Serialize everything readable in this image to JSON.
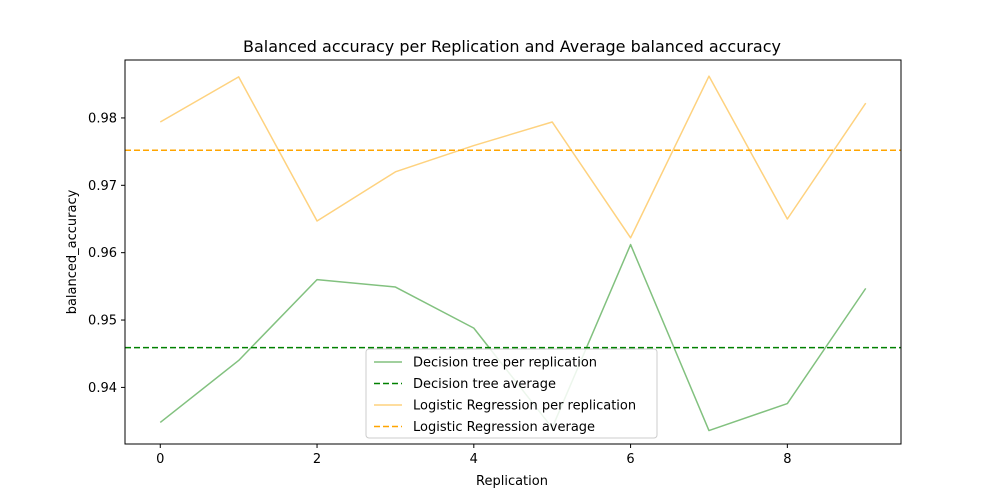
{
  "chart_data": {
    "type": "line",
    "title": "Balanced accuracy per Replication and Average balanced accuracy",
    "xlabel": "Replication",
    "ylabel": "balanced_accuracy",
    "xlim": [
      -0.45,
      9.45
    ],
    "ylim": [
      0.9316,
      0.9886
    ],
    "xticks": [
      0,
      2,
      4,
      6,
      8
    ],
    "yticks": [
      0.94,
      0.95,
      0.96,
      0.97,
      0.98
    ],
    "xtick_labels": [
      "0",
      "2",
      "4",
      "6",
      "8"
    ],
    "ytick_labels": [
      "0.94",
      "0.95",
      "0.96",
      "0.97",
      "0.98"
    ],
    "grid": false,
    "legend_position": "lower-center",
    "x": [
      0,
      1,
      2,
      3,
      4,
      5,
      6,
      7,
      8,
      9
    ],
    "series": [
      {
        "name": "Decision tree per replication",
        "kind": "line",
        "style": "solid",
        "color": "#82c17f",
        "values": [
          0.9348,
          0.944,
          0.956,
          0.9549,
          0.9488,
          0.934,
          0.9612,
          0.9336,
          0.9376,
          0.9547
        ]
      },
      {
        "name": "Decision tree average",
        "kind": "hline",
        "style": "dashed",
        "color": "#008000",
        "value": 0.9459
      },
      {
        "name": "Logistic Regression per replication",
        "kind": "line",
        "style": "solid",
        "color": "#fed27f",
        "values": [
          0.9794,
          0.9861,
          0.9647,
          0.972,
          0.9759,
          0.9794,
          0.9622,
          0.9862,
          0.965,
          0.9822
        ]
      },
      {
        "name": "Logistic Regression average",
        "kind": "hline",
        "style": "dashed",
        "color": "#ffa500",
        "value": 0.9752
      }
    ]
  }
}
